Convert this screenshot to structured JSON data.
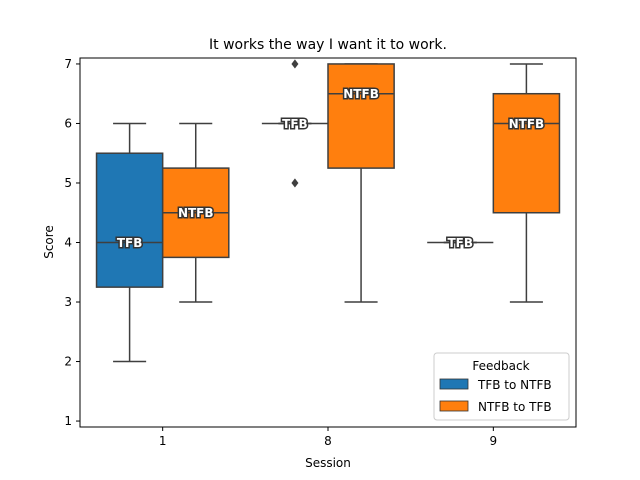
{
  "chart_data": {
    "type": "box",
    "title": "It works the way I want it to work.",
    "xlabel": "Session",
    "ylabel": "Score",
    "categories": [
      "1",
      "8",
      "9"
    ],
    "ylim": [
      0.9,
      7.1
    ],
    "yticks": [
      1,
      2,
      3,
      4,
      5,
      6,
      7
    ],
    "grid": false,
    "legend": {
      "title": "Feedback",
      "placement": "lower-right"
    },
    "series": [
      {
        "name": "TFB to NTFB",
        "color": "#1f77b4",
        "median_label": "TFB",
        "boxes": [
          {
            "category": "1",
            "whisker_low": 2,
            "q1": 3.25,
            "median": 4,
            "q3": 5.5,
            "whisker_high": 6,
            "outliers": []
          },
          {
            "category": "8",
            "whisker_low": 6,
            "q1": 6,
            "median": 6,
            "q3": 6,
            "whisker_high": 6,
            "outliers": [
              5,
              7
            ]
          },
          {
            "category": "9",
            "whisker_low": 4,
            "q1": 4,
            "median": 4,
            "q3": 4,
            "whisker_high": 4,
            "outliers": []
          }
        ]
      },
      {
        "name": "NTFB to TFB",
        "color": "#ff7f0e",
        "median_label": "NTFB",
        "boxes": [
          {
            "category": "1",
            "whisker_low": 3,
            "q1": 3.75,
            "median": 4.5,
            "q3": 5.25,
            "whisker_high": 6,
            "outliers": []
          },
          {
            "category": "8",
            "whisker_low": 3,
            "q1": 5.25,
            "median": 6.5,
            "q3": 7,
            "whisker_high": 7,
            "outliers": []
          },
          {
            "category": "9",
            "whisker_low": 3,
            "q1": 4.5,
            "median": 6,
            "q3": 6.5,
            "whisker_high": 7,
            "outliers": []
          }
        ]
      }
    ]
  }
}
